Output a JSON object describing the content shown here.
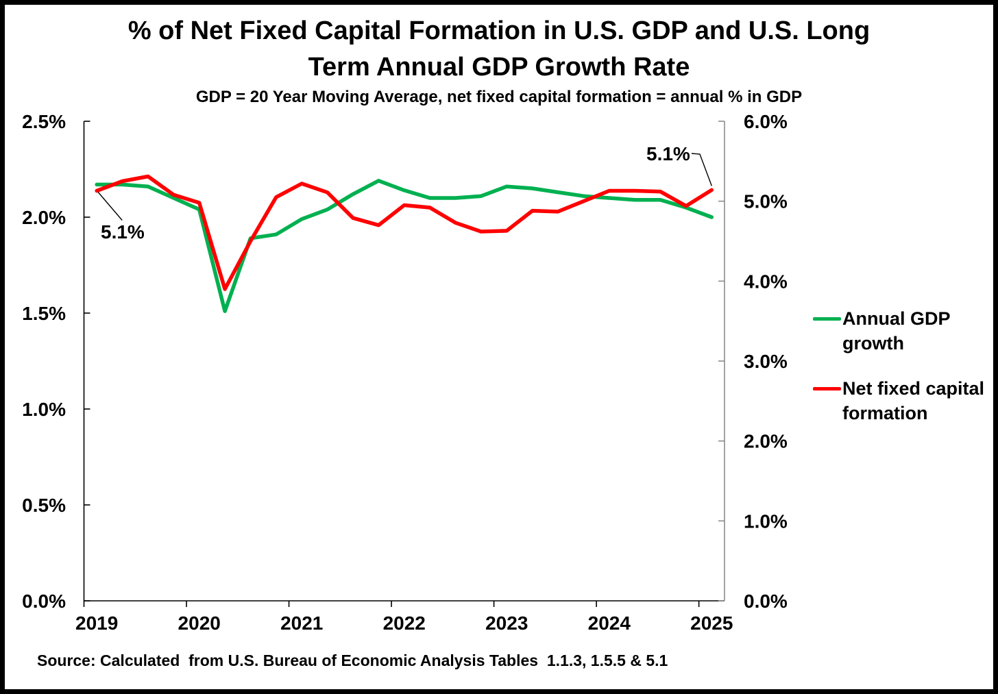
{
  "title": {
    "line1": "% of Net Fixed Capital Formation in U.S. GDP and U.S. Long",
    "line2": "Term Annual GDP Growth Rate",
    "subtitle": "GDP = 20 Year Moving Average, net fixed capital formation = annual % in GDP"
  },
  "source": "Source: Calculated  from U.S. Bureau of Economic Analysis Tables  1.1.3, 1.5.5 & 5.1",
  "legend": [
    {
      "label": "Annual GDP growth",
      "color": "#00B050"
    },
    {
      "label": "Net fixed capital formation",
      "color": "#FF0000"
    }
  ],
  "annotations": {
    "start": {
      "text": "5.1%",
      "points_to": "first Net fixed capital formation value"
    },
    "end": {
      "text": "5.1%",
      "points_to": "last Net fixed capital formation value"
    }
  },
  "chart_data": {
    "type": "line",
    "grid": false,
    "legend_position": "right",
    "categories": [
      "2019 Q1",
      "2019 Q2",
      "2019 Q3",
      "2019 Q4",
      "2020 Q1",
      "2020 Q2",
      "2020 Q3",
      "2020 Q4",
      "2021 Q1",
      "2021 Q2",
      "2021 Q3",
      "2021 Q4",
      "2022 Q1",
      "2022 Q2",
      "2022 Q3",
      "2022 Q4",
      "2023 Q1",
      "2023 Q2",
      "2023 Q3",
      "2023 Q4",
      "2024 Q1",
      "2024 Q2",
      "2024 Q3",
      "2024 Q4",
      "2025 Q1"
    ],
    "series": [
      {
        "name": "Annual GDP growth",
        "axis": "left",
        "color": "#00B050",
        "values": [
          2.17,
          2.17,
          2.16,
          2.1,
          2.04,
          1.51,
          1.89,
          1.91,
          1.99,
          2.04,
          2.12,
          2.19,
          2.14,
          2.1,
          2.1,
          2.11,
          2.16,
          2.15,
          2.13,
          2.11,
          2.1,
          2.09,
          2.09,
          2.05,
          2.0
        ]
      },
      {
        "name": "Net fixed capital formation",
        "axis": "right",
        "color": "#FF0000",
        "values": [
          5.13,
          5.25,
          5.31,
          5.08,
          4.98,
          3.9,
          4.5,
          5.05,
          5.22,
          5.11,
          4.79,
          4.7,
          4.95,
          4.92,
          4.73,
          4.62,
          4.63,
          4.88,
          4.87,
          5.0,
          5.13,
          5.13,
          5.12,
          4.94,
          5.14
        ]
      }
    ],
    "left_axis": {
      "min": 0,
      "max": 2.5,
      "tick_labels": [
        "0.0%",
        "0.5%",
        "1.0%",
        "1.5%",
        "2.0%",
        "2.5%"
      ],
      "color": "#000000"
    },
    "right_axis": {
      "min": 0,
      "max": 6.0,
      "tick_labels": [
        "0.0%",
        "1.0%",
        "2.0%",
        "3.0%",
        "4.0%",
        "5.0%",
        "6.0%"
      ],
      "color": "#8C8C8C"
    },
    "x_axis": {
      "tick_labels": [
        "2019",
        "2020",
        "2021",
        "2022",
        "2023",
        "2024",
        "2025"
      ],
      "label_category_indices": [
        0,
        4,
        8,
        12,
        16,
        20,
        24
      ],
      "color": "#000000"
    }
  }
}
